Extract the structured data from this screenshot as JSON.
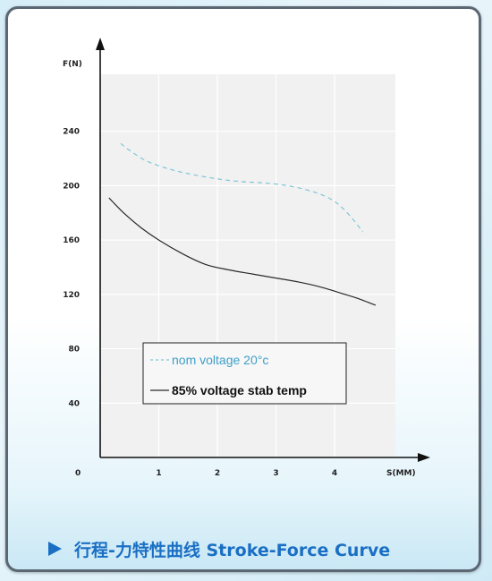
{
  "chart_data": {
    "type": "line",
    "title": "行程-力特性曲线 Stroke-Force Curve",
    "xlabel": "S(MM)",
    "ylabel": "F(N)",
    "xlim": [
      0,
      5.0
    ],
    "ylim": [
      0,
      275
    ],
    "x_ticks": [
      1,
      2,
      3,
      4
    ],
    "y_ticks": [
      40,
      80,
      120,
      160,
      200,
      240
    ],
    "origin_label": "0",
    "grid": true,
    "legend_position": "lower-left",
    "series": [
      {
        "name": "nom  voltage 20°c",
        "style": "dashed",
        "color": "#7fc6d8",
        "x": [
          0.35,
          0.5,
          0.8,
          1.2,
          1.6,
          2.0,
          2.4,
          2.8,
          3.2,
          3.6,
          3.9,
          4.1,
          4.3,
          4.48
        ],
        "y": [
          231,
          226,
          218,
          212,
          208,
          205,
          203,
          202,
          200,
          196,
          191,
          185,
          176,
          166
        ]
      },
      {
        "name": "85%  voltage stab temp",
        "style": "solid",
        "color": "#2a2a2a",
        "x": [
          0.15,
          0.4,
          0.7,
          1.0,
          1.4,
          1.8,
          2.2,
          2.6,
          3.0,
          3.4,
          3.8,
          4.1,
          4.4,
          4.7
        ],
        "y": [
          191,
          180,
          169,
          160,
          150,
          142,
          138,
          135,
          132,
          129,
          125,
          121,
          117,
          112
        ]
      }
    ]
  },
  "caption": {
    "text": "行程-力特性曲线 Stroke-Force Curve",
    "color": "#1a6fc4"
  }
}
